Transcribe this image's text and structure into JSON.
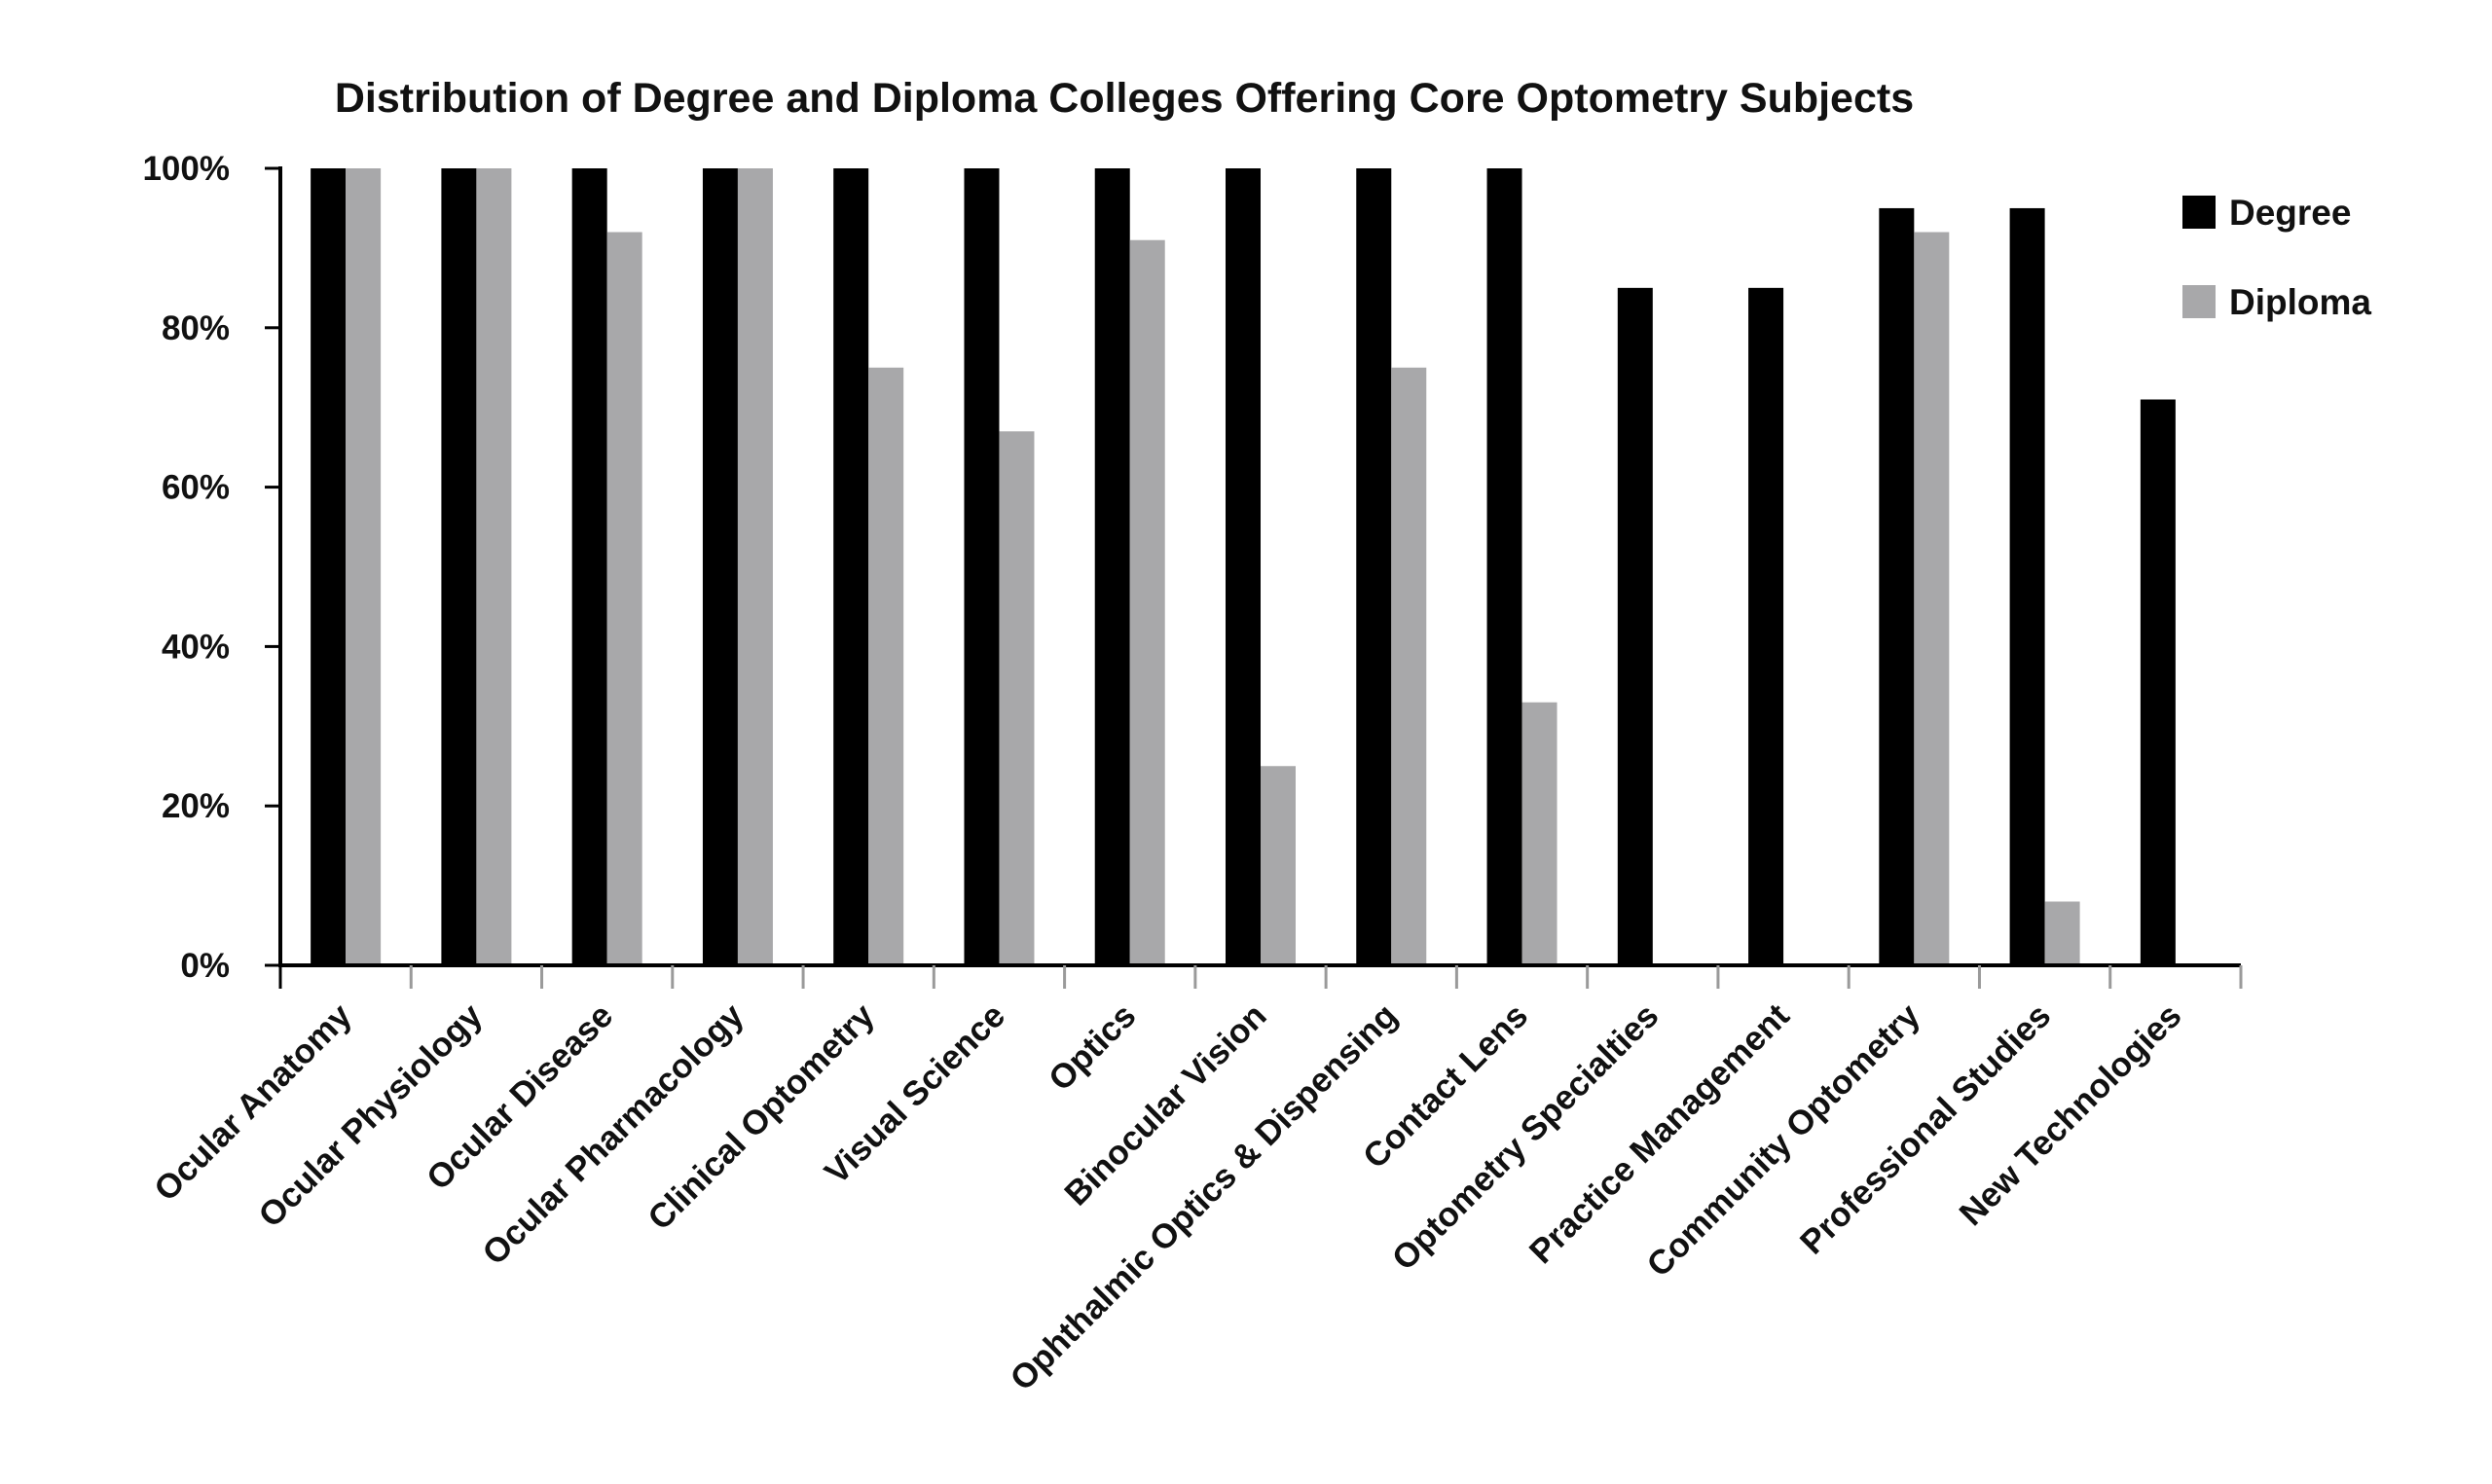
{
  "chart_data": {
    "type": "bar",
    "title": "Distribution of Degree and Diploma Colleges Offering Core Optometry Subjects",
    "xlabel": "",
    "ylabel": "",
    "ylim": [
      0,
      100
    ],
    "y_ticks": [
      0,
      20,
      40,
      60,
      80,
      100
    ],
    "y_tick_labels": [
      "0%",
      "20%",
      "40%",
      "60%",
      "80%",
      "100%"
    ],
    "grid": false,
    "legend_position": "top-right",
    "categories": [
      "Ocular Anatomy",
      "Ocular Physiology",
      "Ocular Disease",
      "Ocular Pharmacology",
      "Clinical Optometry",
      "Visual Science",
      "Optics",
      "Binocular Vision",
      "Ophthalmic Optics & Dispensing",
      "Contact Lens",
      "Optometry Specialties",
      "Practice Management",
      "Community Optometry",
      "Professional Studies",
      "New Technologies"
    ],
    "series": [
      {
        "name": "Degree",
        "color": "#000000",
        "values": [
          100,
          100,
          100,
          100,
          100,
          100,
          100,
          100,
          100,
          100,
          85,
          85,
          95,
          95,
          71
        ]
      },
      {
        "name": "Diploma",
        "color": "#a8a8aa",
        "values": [
          100,
          100,
          92,
          100,
          75,
          67,
          91,
          25,
          75,
          33,
          0,
          0,
          92,
          8,
          0
        ]
      }
    ]
  }
}
